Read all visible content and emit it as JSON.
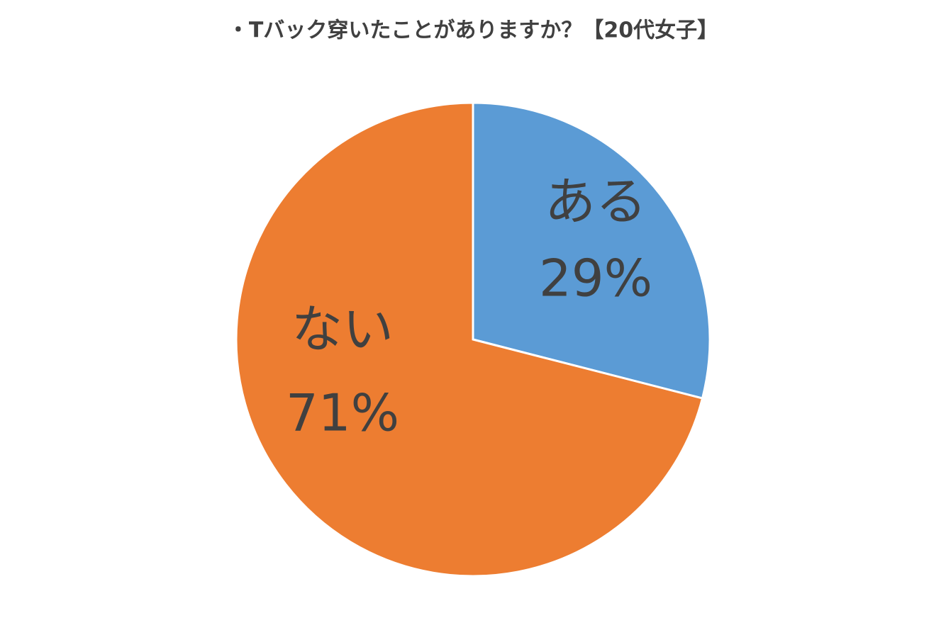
{
  "chart_data": {
    "type": "pie",
    "title": "・Tバック穿いたことがありますか？【20代女子】",
    "categories": [
      "ある",
      "ない"
    ],
    "values": [
      29,
      71
    ],
    "value_labels": [
      "29%",
      "71%"
    ],
    "colors": [
      "#5b9bd5",
      "#ed7d31"
    ]
  }
}
